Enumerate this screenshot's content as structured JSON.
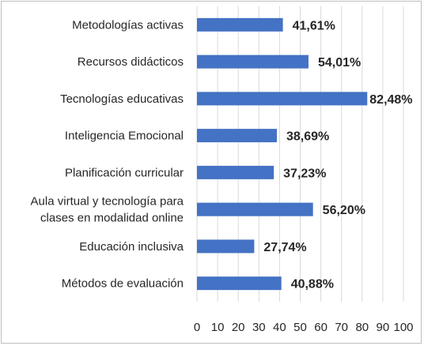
{
  "chart_data": {
    "type": "bar",
    "orientation": "horizontal",
    "categories": [
      [
        "Metodologías activas"
      ],
      [
        "Recursos didácticos"
      ],
      [
        "Tecnologías educativas"
      ],
      [
        "Inteligencia Emocional"
      ],
      [
        "Planificación curricular"
      ],
      [
        "Aula virtual y tecnología para",
        "clases en modalidad online"
      ],
      [
        "Educación inclusiva"
      ],
      [
        "Métodos de evaluación"
      ]
    ],
    "values": [
      41.61,
      54.01,
      82.48,
      38.69,
      37.23,
      56.2,
      27.74,
      40.88
    ],
    "data_labels": [
      "41,61%",
      "54,01%",
      "82,48%",
      "38,69%",
      "37,23%",
      "56,20%",
      "27,74%",
      "40,88%"
    ],
    "x_ticks": [
      "0",
      "10",
      "20",
      "30",
      "40",
      "50",
      "60",
      "70",
      "80",
      "90",
      "100"
    ],
    "xlim": [
      0,
      100
    ],
    "title": "",
    "xlabel": "",
    "ylabel": "",
    "grid": true,
    "legend": "none",
    "bar_color": "#4472c4",
    "grid_color": "#d9d9d9"
  }
}
